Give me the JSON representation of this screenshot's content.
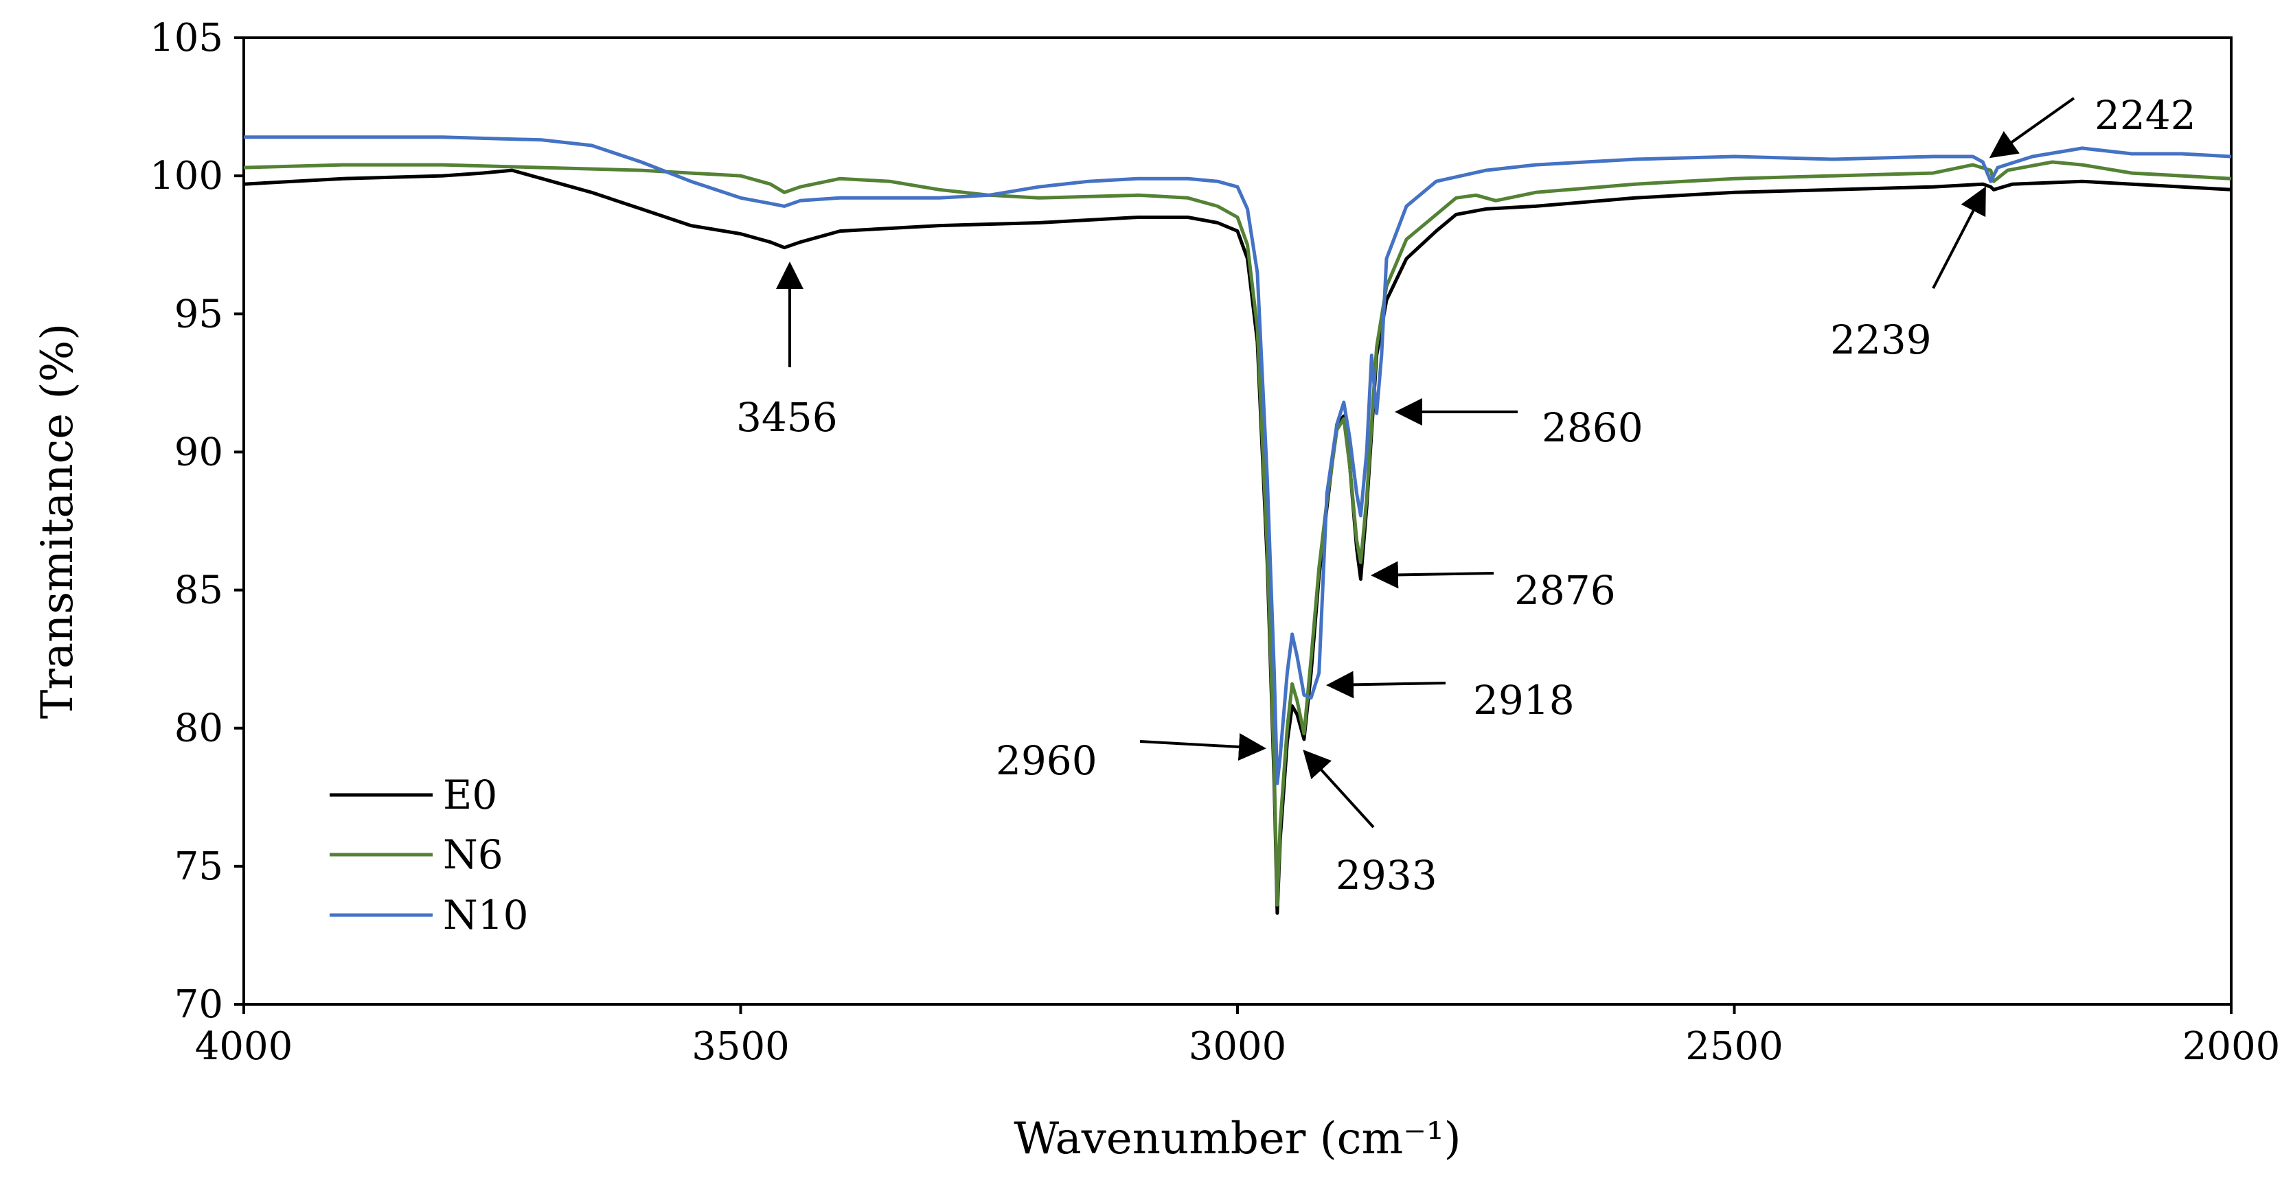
{
  "chart_data": {
    "type": "line",
    "title": "",
    "xlabel": "Wavenumber (cm⁻¹)",
    "ylabel": "Transmitance (%)",
    "xlim": [
      4000,
      2000
    ],
    "ylim": [
      70,
      105
    ],
    "xticks": [
      4000,
      3500,
      3000,
      2500,
      2000
    ],
    "yticks": [
      70,
      75,
      80,
      85,
      90,
      95,
      100,
      105
    ],
    "grid": false,
    "legend_position": "bottom-left",
    "series": [
      {
        "name": "E0",
        "color": "#000000",
        "points": [
          [
            4000,
            99.7
          ],
          [
            3900,
            99.9
          ],
          [
            3800,
            100.0
          ],
          [
            3760,
            100.1
          ],
          [
            3730,
            100.2
          ],
          [
            3700,
            99.9
          ],
          [
            3650,
            99.4
          ],
          [
            3600,
            98.8
          ],
          [
            3550,
            98.2
          ],
          [
            3500,
            97.9
          ],
          [
            3470,
            97.6
          ],
          [
            3456,
            97.4
          ],
          [
            3440,
            97.6
          ],
          [
            3400,
            98.0
          ],
          [
            3300,
            98.2
          ],
          [
            3200,
            98.3
          ],
          [
            3100,
            98.5
          ],
          [
            3050,
            98.5
          ],
          [
            3020,
            98.3
          ],
          [
            3000,
            98.0
          ],
          [
            2990,
            97.0
          ],
          [
            2980,
            94.0
          ],
          [
            2970,
            86.0
          ],
          [
            2963,
            78.0
          ],
          [
            2960,
            73.3
          ],
          [
            2957,
            76.0
          ],
          [
            2950,
            79.5
          ],
          [
            2945,
            80.8
          ],
          [
            2940,
            80.5
          ],
          [
            2933,
            79.6
          ],
          [
            2926,
            82.0
          ],
          [
            2918,
            85.5
          ],
          [
            2910,
            88.0
          ],
          [
            2900,
            91.0
          ],
          [
            2893,
            91.3
          ],
          [
            2887,
            89.5
          ],
          [
            2880,
            86.5
          ],
          [
            2876,
            85.4
          ],
          [
            2870,
            88.0
          ],
          [
            2860,
            93.5
          ],
          [
            2850,
            95.5
          ],
          [
            2830,
            97.0
          ],
          [
            2800,
            98.0
          ],
          [
            2780,
            98.6
          ],
          [
            2750,
            98.8
          ],
          [
            2700,
            98.9
          ],
          [
            2600,
            99.2
          ],
          [
            2500,
            99.4
          ],
          [
            2400,
            99.5
          ],
          [
            2300,
            99.6
          ],
          [
            2250,
            99.7
          ],
          [
            2242,
            99.6
          ],
          [
            2239,
            99.5
          ],
          [
            2220,
            99.7
          ],
          [
            2150,
            99.8
          ],
          [
            2100,
            99.7
          ],
          [
            2050,
            99.6
          ],
          [
            2000,
            99.5
          ]
        ]
      },
      {
        "name": "N6",
        "color": "#548235",
        "points": [
          [
            4000,
            100.3
          ],
          [
            3900,
            100.4
          ],
          [
            3800,
            100.4
          ],
          [
            3700,
            100.3
          ],
          [
            3600,
            100.2
          ],
          [
            3500,
            100.0
          ],
          [
            3470,
            99.7
          ],
          [
            3456,
            99.4
          ],
          [
            3440,
            99.6
          ],
          [
            3400,
            99.9
          ],
          [
            3350,
            99.8
          ],
          [
            3300,
            99.5
          ],
          [
            3250,
            99.3
          ],
          [
            3200,
            99.2
          ],
          [
            3100,
            99.3
          ],
          [
            3050,
            99.2
          ],
          [
            3020,
            98.9
          ],
          [
            3000,
            98.5
          ],
          [
            2990,
            97.5
          ],
          [
            2980,
            94.5
          ],
          [
            2970,
            86.5
          ],
          [
            2963,
            78.5
          ],
          [
            2960,
            73.6
          ],
          [
            2957,
            76.5
          ],
          [
            2950,
            80.0
          ],
          [
            2945,
            81.6
          ],
          [
            2940,
            81.0
          ],
          [
            2933,
            79.8
          ],
          [
            2926,
            82.5
          ],
          [
            2918,
            85.8
          ],
          [
            2910,
            88.2
          ],
          [
            2900,
            90.8
          ],
          [
            2893,
            91.2
          ],
          [
            2887,
            89.5
          ],
          [
            2880,
            86.8
          ],
          [
            2876,
            86.0
          ],
          [
            2870,
            88.3
          ],
          [
            2860,
            93.8
          ],
          [
            2850,
            96.0
          ],
          [
            2830,
            97.7
          ],
          [
            2800,
            98.6
          ],
          [
            2780,
            99.2
          ],
          [
            2760,
            99.3
          ],
          [
            2740,
            99.1
          ],
          [
            2700,
            99.4
          ],
          [
            2600,
            99.7
          ],
          [
            2500,
            99.9
          ],
          [
            2400,
            100.0
          ],
          [
            2300,
            100.1
          ],
          [
            2260,
            100.4
          ],
          [
            2242,
            100.2
          ],
          [
            2239,
            99.8
          ],
          [
            2225,
            100.2
          ],
          [
            2180,
            100.5
          ],
          [
            2150,
            100.4
          ],
          [
            2100,
            100.1
          ],
          [
            2050,
            100.0
          ],
          [
            2000,
            99.9
          ]
        ]
      },
      {
        "name": "N10",
        "color": "#4472c4",
        "points": [
          [
            4000,
            101.4
          ],
          [
            3900,
            101.4
          ],
          [
            3800,
            101.4
          ],
          [
            3700,
            101.3
          ],
          [
            3650,
            101.1
          ],
          [
            3600,
            100.5
          ],
          [
            3550,
            99.8
          ],
          [
            3500,
            99.2
          ],
          [
            3470,
            99.0
          ],
          [
            3456,
            98.9
          ],
          [
            3440,
            99.1
          ],
          [
            3400,
            99.2
          ],
          [
            3300,
            99.2
          ],
          [
            3250,
            99.3
          ],
          [
            3200,
            99.6
          ],
          [
            3150,
            99.8
          ],
          [
            3100,
            99.9
          ],
          [
            3050,
            99.9
          ],
          [
            3020,
            99.8
          ],
          [
            3000,
            99.6
          ],
          [
            2990,
            98.8
          ],
          [
            2980,
            96.5
          ],
          [
            2970,
            89.0
          ],
          [
            2963,
            82.0
          ],
          [
            2960,
            78.0
          ],
          [
            2957,
            79.0
          ],
          [
            2950,
            82.0
          ],
          [
            2945,
            83.4
          ],
          [
            2940,
            82.6
          ],
          [
            2933,
            81.2
          ],
          [
            2926,
            81.1
          ],
          [
            2918,
            82.0
          ],
          [
            2910,
            88.5
          ],
          [
            2900,
            91.0
          ],
          [
            2893,
            91.8
          ],
          [
            2887,
            90.5
          ],
          [
            2880,
            88.5
          ],
          [
            2876,
            87.7
          ],
          [
            2870,
            90.0
          ],
          [
            2865,
            93.5
          ],
          [
            2860,
            91.4
          ],
          [
            2855,
            93.5
          ],
          [
            2850,
            97.0
          ],
          [
            2830,
            98.9
          ],
          [
            2800,
            99.8
          ],
          [
            2750,
            100.2
          ],
          [
            2700,
            100.4
          ],
          [
            2600,
            100.6
          ],
          [
            2500,
            100.7
          ],
          [
            2400,
            100.6
          ],
          [
            2300,
            100.7
          ],
          [
            2260,
            100.7
          ],
          [
            2250,
            100.5
          ],
          [
            2242,
            99.8
          ],
          [
            2235,
            100.3
          ],
          [
            2200,
            100.7
          ],
          [
            2150,
            101.0
          ],
          [
            2100,
            100.8
          ],
          [
            2050,
            100.8
          ],
          [
            2000,
            100.7
          ]
        ]
      }
    ],
    "annotations": [
      {
        "text": "3456"
      },
      {
        "text": "2960"
      },
      {
        "text": "2933"
      },
      {
        "text": "2918"
      },
      {
        "text": "2876"
      },
      {
        "text": "2860"
      },
      {
        "text": "2242"
      },
      {
        "text": "2239"
      }
    ]
  }
}
